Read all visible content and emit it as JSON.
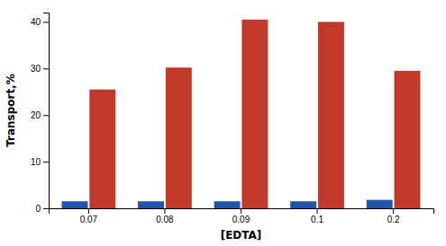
{
  "chart_data": {
    "type": "bar",
    "xlabel": "[EDTA]",
    "ylabel": "Transport,%",
    "categories": [
      "0.07",
      "0.08",
      "0.09",
      "0.1",
      "0.2"
    ],
    "series": [
      {
        "color": "#2255AA",
        "values": [
          1.5,
          1.5,
          1.5,
          1.5,
          1.8
        ]
      },
      {
        "color": "#C0392B",
        "values": [
          25.5,
          30.2,
          40.5,
          40.0,
          29.5
        ]
      }
    ],
    "ylim": [
      0,
      42
    ],
    "yticks": [
      0,
      10,
      20,
      30,
      40
    ],
    "grid": false
  }
}
